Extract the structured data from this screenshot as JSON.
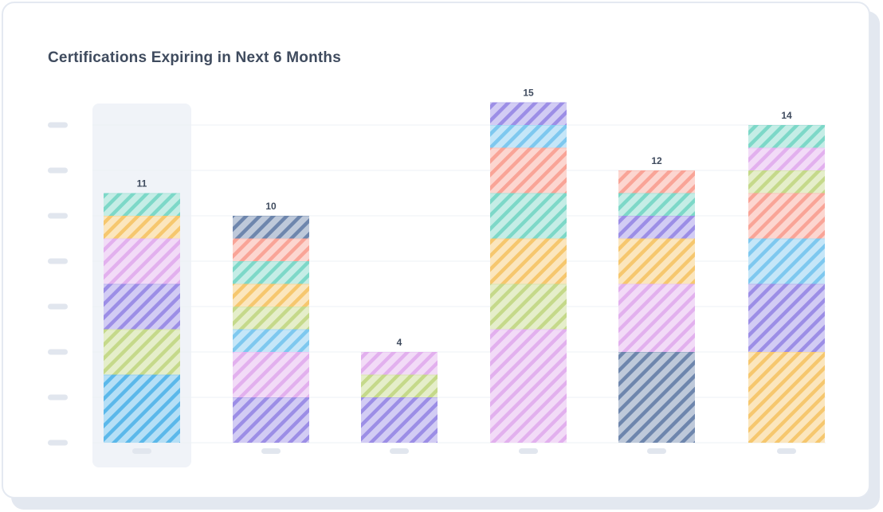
{
  "chart_data": {
    "type": "bar",
    "stacked": true,
    "title": "Certifications Expiring in Next 6 Months",
    "xlabel": "",
    "ylabel": "",
    "ylim": [
      0,
      15
    ],
    "grid": true,
    "highlighted_index": 0,
    "categories": [
      "",
      "",
      "",
      "",
      "",
      ""
    ],
    "totals": [
      "11",
      "10",
      "4",
      "15",
      "12",
      "14"
    ],
    "bars": [
      {
        "segments": [
          {
            "value": 3,
            "color": "#5bb8ea"
          },
          {
            "value": 2,
            "color": "#c5d98a"
          },
          {
            "value": 2,
            "color": "#9c8ee6"
          },
          {
            "value": 2,
            "color": "#e2b0ee"
          },
          {
            "value": 1,
            "color": "#f6c76e"
          },
          {
            "value": 1,
            "color": "#7dd8c8"
          }
        ]
      },
      {
        "segments": [
          {
            "value": 2,
            "color": "#9c8ee6"
          },
          {
            "value": 2,
            "color": "#e2b0ee"
          },
          {
            "value": 1,
            "color": "#7ec8ef"
          },
          {
            "value": 1,
            "color": "#c5d98a"
          },
          {
            "value": 1,
            "color": "#f6c76e"
          },
          {
            "value": 1,
            "color": "#7dd8c8"
          },
          {
            "value": 1,
            "color": "#f9a497"
          },
          {
            "value": 1,
            "color": "#6e86ad"
          }
        ]
      },
      {
        "segments": [
          {
            "value": 2,
            "color": "#9c8ee6"
          },
          {
            "value": 1,
            "color": "#c5d98a"
          },
          {
            "value": 1,
            "color": "#e2b0ee"
          }
        ]
      },
      {
        "segments": [
          {
            "value": 5,
            "color": "#e2b0ee"
          },
          {
            "value": 2,
            "color": "#c5d98a"
          },
          {
            "value": 2,
            "color": "#f6c76e"
          },
          {
            "value": 2,
            "color": "#7dd8c8"
          },
          {
            "value": 2,
            "color": "#f9a497"
          },
          {
            "value": 1,
            "color": "#7ec8ef"
          },
          {
            "value": 1,
            "color": "#9c8ee6"
          }
        ]
      },
      {
        "segments": [
          {
            "value": 4,
            "color": "#6e86ad"
          },
          {
            "value": 3,
            "color": "#e2b0ee"
          },
          {
            "value": 2,
            "color": "#f6c76e"
          },
          {
            "value": 1,
            "color": "#9c8ee6"
          },
          {
            "value": 1,
            "color": "#7dd8c8"
          },
          {
            "value": 1,
            "color": "#f9a497"
          }
        ]
      },
      {
        "segments": [
          {
            "value": 4,
            "color": "#f6c76e"
          },
          {
            "value": 3,
            "color": "#9c8ee6"
          },
          {
            "value": 2,
            "color": "#7ec8ef"
          },
          {
            "value": 2,
            "color": "#f9a497"
          },
          {
            "value": 1,
            "color": "#c5d98a"
          },
          {
            "value": 1,
            "color": "#e2b0ee"
          },
          {
            "value": 1,
            "color": "#7dd8c8"
          }
        ]
      }
    ]
  },
  "colors": {
    "grid": "#edf0f5",
    "placeholder": "#e1e6ee",
    "highlight": "#f0f3f8",
    "text": "#3f4b5e"
  }
}
